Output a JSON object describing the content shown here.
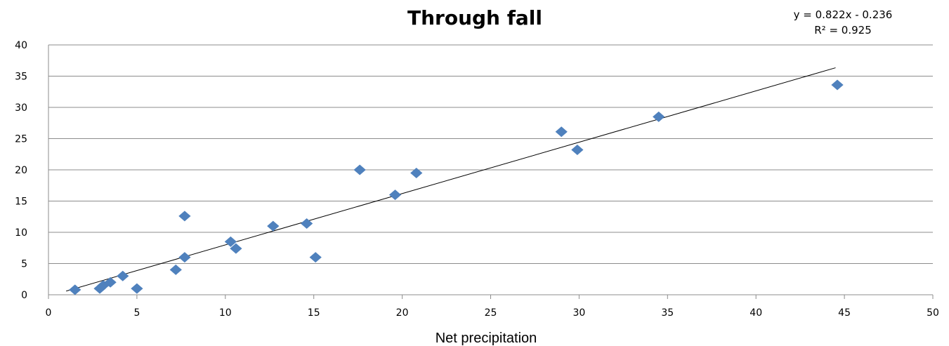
{
  "chart_data": {
    "type": "scatter",
    "title": "Through fall",
    "xlabel": "Net precipitation",
    "ylabel": "",
    "xlim": [
      0,
      50
    ],
    "ylim": [
      0,
      40
    ],
    "x_ticks": [
      0,
      5,
      10,
      15,
      20,
      25,
      30,
      35,
      40,
      45,
      50
    ],
    "y_ticks": [
      0,
      5,
      10,
      15,
      20,
      25,
      30,
      35,
      40
    ],
    "grid": "horizontal",
    "legend": "none",
    "marker_color": "#4f81bd",
    "trendline": {
      "type": "linear",
      "slope": 0.822,
      "intercept": -0.236,
      "x_range": [
        1,
        44.5
      ],
      "equation_text": "y = 0.822x - 0.236",
      "r2_text": "R² = 0.925",
      "color": "#000000"
    },
    "points": [
      {
        "x": 1.5,
        "y": 0.8
      },
      {
        "x": 2.9,
        "y": 1.0
      },
      {
        "x": 3.1,
        "y": 1.5
      },
      {
        "x": 3.5,
        "y": 2.0
      },
      {
        "x": 4.2,
        "y": 3.0
      },
      {
        "x": 5.0,
        "y": 1.0
      },
      {
        "x": 7.2,
        "y": 4.0
      },
      {
        "x": 7.7,
        "y": 6.0
      },
      {
        "x": 7.7,
        "y": 12.6
      },
      {
        "x": 10.3,
        "y": 8.5
      },
      {
        "x": 10.6,
        "y": 7.4
      },
      {
        "x": 12.7,
        "y": 11.0
      },
      {
        "x": 14.6,
        "y": 11.4
      },
      {
        "x": 15.1,
        "y": 6.0
      },
      {
        "x": 17.6,
        "y": 20.0
      },
      {
        "x": 19.6,
        "y": 16.0
      },
      {
        "x": 20.8,
        "y": 19.5
      },
      {
        "x": 29.0,
        "y": 26.1
      },
      {
        "x": 29.9,
        "y": 23.2
      },
      {
        "x": 34.5,
        "y": 28.5
      },
      {
        "x": 44.6,
        "y": 33.6
      }
    ]
  }
}
